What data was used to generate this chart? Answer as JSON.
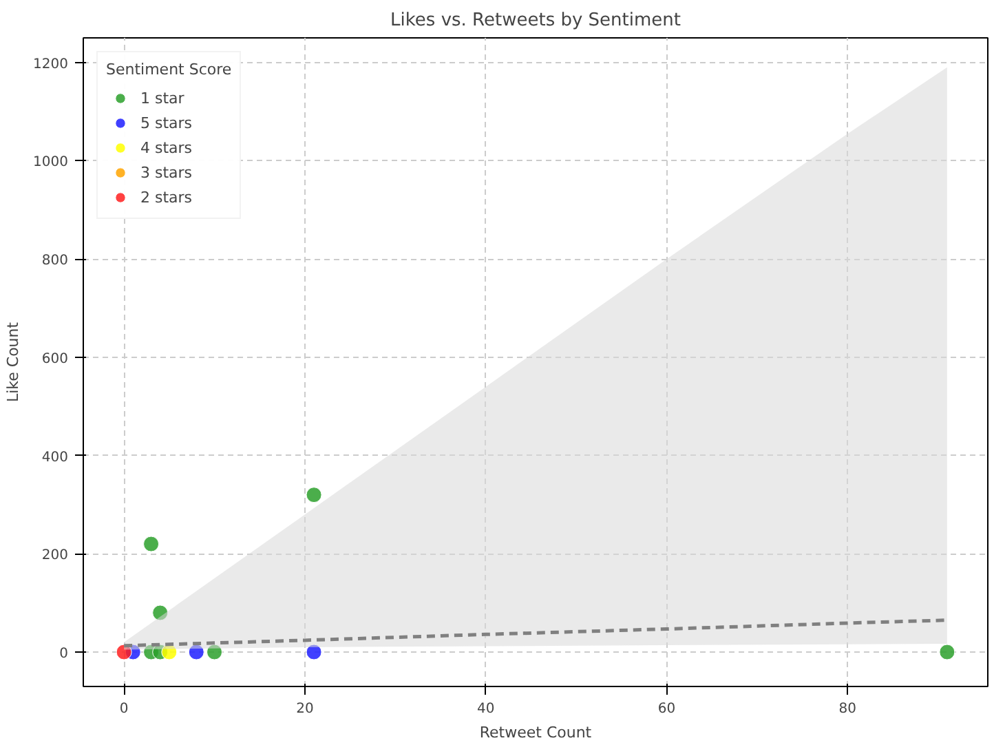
{
  "chart_data": {
    "type": "scatter",
    "title": "Likes vs. Retweets by Sentiment",
    "xlabel": "Retweet Count",
    "ylabel": "Like Count",
    "legend_title": "Sentiment Score",
    "legend": "top left",
    "grid": true,
    "marker": "circle",
    "xlim": [
      -4.5,
      95.5
    ],
    "ylim": [
      -70,
      1250
    ],
    "xticks": [
      0,
      20,
      40,
      60,
      80
    ],
    "yticks": [
      0,
      200,
      400,
      600,
      800,
      1000,
      1200
    ],
    "series": [
      {
        "name": "1 star",
        "color": "#2ca02c",
        "x": [
          3,
          4,
          21,
          91,
          3,
          4,
          10
        ],
        "values": [
          220,
          80,
          320,
          0,
          0,
          0,
          0
        ]
      },
      {
        "name": "5 stars",
        "color": "#1f1fff",
        "x": [
          1,
          8,
          21
        ],
        "values": [
          0,
          0,
          0
        ]
      },
      {
        "name": "4 stars",
        "color": "#ffff00",
        "x": [
          5
        ],
        "values": [
          0
        ]
      },
      {
        "name": "3 stars",
        "color": "#ffa500"
      },
      {
        "name": "2 stars",
        "color": "#ff2020",
        "x": [
          0
        ],
        "values": [
          0
        ]
      },
      {
        "type": "line",
        "marker": "none",
        "color": "#808080",
        "line_style": "dashed",
        "x": [
          0,
          20,
          40,
          60,
          80,
          91
        ],
        "values": [
          13,
          24,
          36,
          47,
          59,
          65
        ],
        "lower": [
          5,
          10,
          12,
          14,
          16,
          17
        ],
        "upper": [
          20,
          280,
          540,
          800,
          1055,
          1190
        ]
      }
    ]
  }
}
